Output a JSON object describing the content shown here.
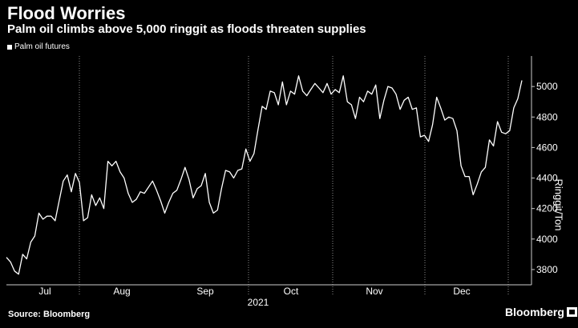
{
  "chart_data": {
    "type": "line",
    "title": "Flood Worries",
    "subtitle": "Palm oil climbs above 5,000 ringgit as floods threaten supplies",
    "series": [
      {
        "name": "Palm oil futures",
        "color": "#ffffff",
        "values": [
          3880,
          3850,
          3790,
          3770,
          3900,
          3870,
          3980,
          4020,
          4170,
          4130,
          4150,
          4150,
          4120,
          4250,
          4380,
          4420,
          4310,
          4430,
          4370,
          4120,
          4140,
          4290,
          4220,
          4270,
          4200,
          4510,
          4480,
          4510,
          4440,
          4400,
          4300,
          4240,
          4260,
          4310,
          4300,
          4340,
          4380,
          4320,
          4250,
          4170,
          4240,
          4300,
          4320,
          4390,
          4470,
          4390,
          4270,
          4330,
          4350,
          4430,
          4240,
          4170,
          4190,
          4330,
          4450,
          4440,
          4400,
          4450,
          4460,
          4590,
          4510,
          4560,
          4720,
          4870,
          4850,
          4970,
          4960,
          4880,
          5030,
          4880,
          4970,
          4950,
          5070,
          4970,
          4940,
          4980,
          5020,
          4990,
          4960,
          5020,
          4950,
          4980,
          4960,
          5070,
          4900,
          4880,
          4790,
          4930,
          4900,
          4970,
          4950,
          5010,
          4790,
          4910,
          5000,
          4990,
          4950,
          4850,
          4910,
          4930,
          4850,
          4860,
          4670,
          4680,
          4640,
          4750,
          4930,
          4860,
          4780,
          4800,
          4790,
          4710,
          4480,
          4410,
          4410,
          4290,
          4360,
          4440,
          4470,
          4650,
          4610,
          4770,
          4700,
          4690,
          4710,
          4860,
          4920,
          5040
        ]
      }
    ],
    "x_ticks": [
      "Jul",
      "Aug",
      "Sep",
      "Oct",
      "Nov",
      "Dec"
    ],
    "x_year_label": "2021",
    "y_ticks": [
      3800,
      4000,
      4200,
      4400,
      4600,
      4800,
      5000
    ],
    "ylim": [
      3700,
      5200
    ],
    "ylabel": "Ringgit/Ton",
    "xlabel": "",
    "legend_position": "top-left",
    "grid": "vertical dotted at month boundaries"
  },
  "source": "Source: Bloomberg",
  "brand": "Bloomberg"
}
